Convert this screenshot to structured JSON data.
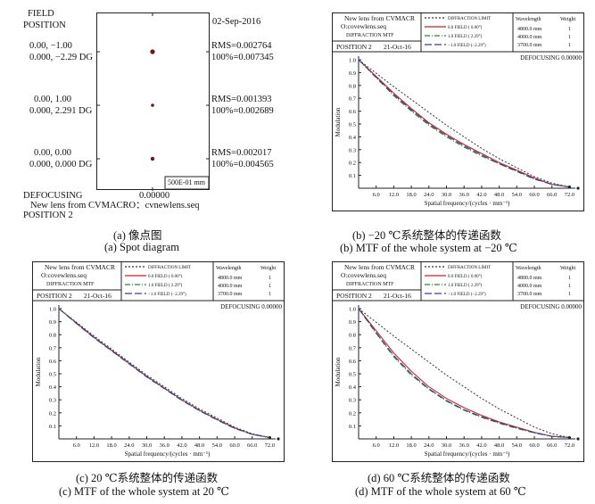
{
  "spot": {
    "field_label": "FIELD",
    "position_label": "POSITION",
    "date": "02-Sep-2016",
    "rows": [
      {
        "field": "0.00, −1.00",
        "pos": "0.000, −2.29 DG",
        "rms": "RMS=0.002764",
        "pct": "100%=0.007345"
      },
      {
        "field": "0.00, 1.00",
        "pos": "0.000, 2.291 DG",
        "rms": "RMS=0.001393",
        "pct": "100%=0.002689"
      },
      {
        "field": "0.00, 0.00",
        "pos": "0.000, 0.000 DG",
        "rms": "RMS=0.002017",
        "pct": "100%=0.004565"
      }
    ],
    "scale": "500E-01 mm",
    "defocus_label": "DEFOCUSING",
    "defocus_value": "0.00000",
    "lens": "New lens from CVMACRO：cvnewlens.seq",
    "position2": "POSITION 2"
  },
  "captions": {
    "a_cn": "(a) 像点图",
    "a_en": "(a) Spot diagram",
    "b_cn": "(b) −20 ℃系统整体的传递函数",
    "b_en": "(b) MTF of the whole system at −20 ℃",
    "c_cn": "(c) 20 ℃系统整体的传递函数",
    "c_en": "(c) MTF of the whole system  at  20 ℃",
    "d_cn": "(d) 60 ℃系统整体的传递函数",
    "d_en": "(d) MTF of the whole system at  60 ℃"
  },
  "mtf_header": {
    "lens1": "New lens from CVMACR",
    "lens2": "O:covewlens.seq",
    "diffraction": "DIFFRACTION MTF",
    "position": "POSITION 2",
    "date": "21-Oct-16",
    "legend": [
      {
        "label": "DIFFRACTION LIMIT",
        "color": "#333333"
      },
      {
        "label": "0.0 FIELD ( 0.00°)",
        "color": "#cc2222"
      },
      {
        "label": "1.0 FIELD ( 2.29°)",
        "color": "#2a8a2a"
      },
      {
        "label": "−1.0 FIELD (−2.29°)",
        "color": "#3a3aa0"
      }
    ],
    "wavelength_label": "Wavelength",
    "weight_label": "Weight",
    "wavelengths": [
      {
        "wl": "4800.0 mm",
        "w": "1"
      },
      {
        "wl": "4000.0 mm",
        "w": "1"
      },
      {
        "wl": "3700.0 mm",
        "w": "1"
      }
    ],
    "defocusing": "DEFOCUSING 0.00000"
  },
  "chart_data": [
    {
      "type": "line",
      "id": "b",
      "xlabel": "Spatial frequency/(cycles · mm⁻¹)",
      "ylabel": "Modulation",
      "xlim": [
        0,
        74
      ],
      "ylim": [
        0,
        1.0
      ],
      "xticks": [
        "6.0",
        "12.0",
        "18.0",
        "24.0",
        "30.0",
        "36.0",
        "42.0",
        "48.0",
        "54.0",
        "60.0",
        "66.0",
        "72.0"
      ],
      "yticks": [
        "0.1",
        "0.2",
        "0.3",
        "0.4",
        "0.5",
        "0.6",
        "0.7",
        "0.8",
        "0.9",
        "1.0"
      ],
      "x": [
        0,
        6,
        12,
        18,
        24,
        30,
        36,
        42,
        48,
        54,
        60,
        66,
        72
      ],
      "series": [
        {
          "values": [
            1.0,
            0.895,
            0.79,
            0.69,
            0.59,
            0.49,
            0.4,
            0.31,
            0.23,
            0.16,
            0.09,
            0.04,
            0.01
          ],
          "color": "#333333",
          "dash": "2,2"
        },
        {
          "values": [
            1.0,
            0.87,
            0.74,
            0.62,
            0.51,
            0.42,
            0.34,
            0.27,
            0.2,
            0.14,
            0.08,
            0.03,
            0.01
          ],
          "color": "#cc2222",
          "dash": ""
        },
        {
          "values": [
            1.0,
            0.86,
            0.72,
            0.6,
            0.49,
            0.4,
            0.32,
            0.25,
            0.19,
            0.13,
            0.07,
            0.03,
            0.01
          ],
          "color": "#2a8a2a",
          "dash": "6,2,1,2"
        },
        {
          "values": [
            1.0,
            0.865,
            0.73,
            0.61,
            0.5,
            0.41,
            0.33,
            0.26,
            0.19,
            0.135,
            0.075,
            0.03,
            0.01
          ],
          "color": "#3a3aa0",
          "dash": "8,3"
        }
      ]
    },
    {
      "type": "line",
      "id": "c",
      "xlabel": "Spatial frequency/(cycles · mm⁻¹)",
      "ylabel": "Modulation",
      "xlim": [
        0,
        74
      ],
      "ylim": [
        0,
        1.0
      ],
      "xticks": [
        "6.0",
        "12.0",
        "18.0",
        "24.0",
        "30.0",
        "36.0",
        "42.0",
        "48.0",
        "54.0",
        "60.0",
        "66.0",
        "72.0"
      ],
      "yticks": [
        "0.1",
        "0.2",
        "0.3",
        "0.4",
        "0.5",
        "0.6",
        "0.7",
        "0.8",
        "0.9",
        "1.0"
      ],
      "x": [
        0,
        6,
        12,
        18,
        24,
        30,
        36,
        42,
        48,
        54,
        60,
        66,
        72
      ],
      "series": [
        {
          "values": [
            1.0,
            0.895,
            0.79,
            0.69,
            0.59,
            0.49,
            0.4,
            0.31,
            0.23,
            0.16,
            0.09,
            0.04,
            0.01
          ],
          "color": "#333333",
          "dash": "2,2"
        },
        {
          "values": [
            1.0,
            0.89,
            0.78,
            0.68,
            0.58,
            0.48,
            0.39,
            0.3,
            0.22,
            0.15,
            0.085,
            0.035,
            0.01
          ],
          "color": "#cc2222",
          "dash": ""
        },
        {
          "values": [
            1.0,
            0.885,
            0.775,
            0.675,
            0.575,
            0.475,
            0.385,
            0.295,
            0.215,
            0.145,
            0.08,
            0.035,
            0.01
          ],
          "color": "#2a8a2a",
          "dash": "6,2,1,2"
        },
        {
          "values": [
            1.0,
            0.888,
            0.778,
            0.678,
            0.578,
            0.478,
            0.388,
            0.298,
            0.218,
            0.148,
            0.082,
            0.035,
            0.01
          ],
          "color": "#3a3aa0",
          "dash": "8,3"
        }
      ]
    },
    {
      "type": "line",
      "id": "d",
      "xlabel": "Spatial frequency/(cycles · mm⁻¹)",
      "ylabel": "Modulation",
      "xlim": [
        0,
        74
      ],
      "ylim": [
        0,
        1.0
      ],
      "xticks": [
        "6.0",
        "12.0",
        "18.0",
        "24.0",
        "30.0",
        "36.0",
        "42.0",
        "48.0",
        "54.0",
        "60.0",
        "66.0",
        "72.0"
      ],
      "yticks": [
        "0.1",
        "0.2",
        "0.3",
        "0.4",
        "0.5",
        "0.6",
        "0.7",
        "0.8",
        "0.9",
        "1.0"
      ],
      "x": [
        0,
        6,
        12,
        18,
        24,
        30,
        36,
        42,
        48,
        54,
        60,
        66,
        72
      ],
      "series": [
        {
          "values": [
            1.0,
            0.895,
            0.79,
            0.69,
            0.59,
            0.49,
            0.4,
            0.31,
            0.23,
            0.16,
            0.09,
            0.04,
            0.01
          ],
          "color": "#333333",
          "dash": "2,2"
        },
        {
          "values": [
            1.0,
            0.83,
            0.66,
            0.52,
            0.4,
            0.31,
            0.24,
            0.18,
            0.13,
            0.09,
            0.05,
            0.02,
            0.01
          ],
          "color": "#cc2222",
          "dash": ""
        },
        {
          "values": [
            1.0,
            0.81,
            0.63,
            0.49,
            0.38,
            0.29,
            0.22,
            0.165,
            0.12,
            0.08,
            0.045,
            0.02,
            0.01
          ],
          "color": "#2a8a2a",
          "dash": "6,2,1,2"
        },
        {
          "values": [
            1.0,
            0.815,
            0.64,
            0.5,
            0.385,
            0.295,
            0.225,
            0.17,
            0.125,
            0.085,
            0.048,
            0.02,
            0.01
          ],
          "color": "#3a3aa0",
          "dash": "8,3"
        }
      ]
    }
  ]
}
